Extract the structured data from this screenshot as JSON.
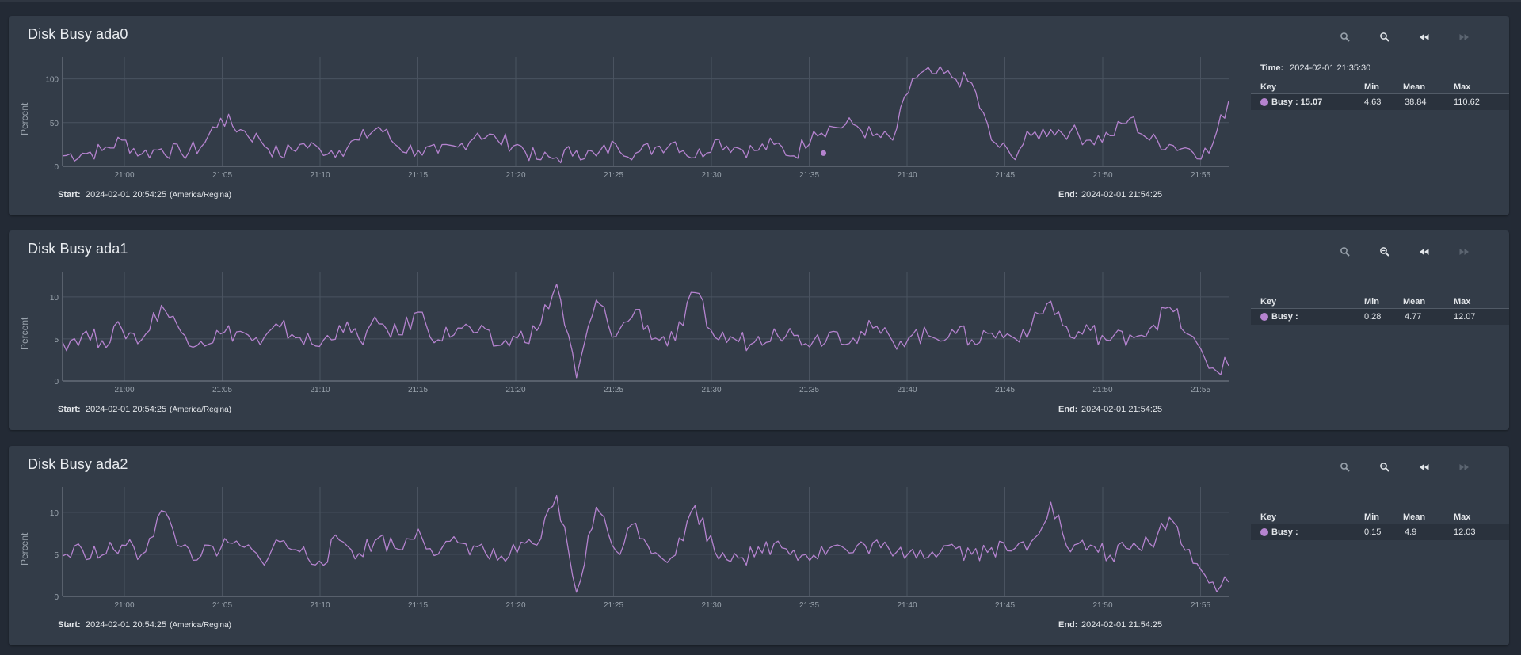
{
  "panels": [
    {
      "title": "Disk Busy ada0",
      "ylabel": "Percent",
      "yticks": [
        "0",
        "50",
        "100"
      ],
      "ymax": 125,
      "xticks": [
        "21:00",
        "21:05",
        "21:10",
        "21:15",
        "21:20",
        "21:25",
        "21:30",
        "21:35",
        "21:40",
        "21:45",
        "21:50",
        "21:55"
      ],
      "start_label": "Start:",
      "start_value": "2024-02-01 20:54:25",
      "start_tz": "(America/Regina)",
      "end_label": "End:",
      "end_value": "2024-02-01 21:54:25",
      "legend": {
        "time_label": "Time:",
        "time_value": "2024-02-01 21:35:30",
        "headers": [
          "Key",
          "Min",
          "Mean",
          "Max"
        ],
        "row": {
          "key": "Busy : 15.07",
          "min": "4.63",
          "mean": "38.84",
          "max": "110.62"
        }
      }
    },
    {
      "title": "Disk Busy ada1",
      "ylabel": "Percent",
      "yticks": [
        "0",
        "5",
        "10"
      ],
      "ymax": 13,
      "xticks": [
        "21:00",
        "21:05",
        "21:10",
        "21:15",
        "21:20",
        "21:25",
        "21:30",
        "21:35",
        "21:40",
        "21:45",
        "21:50",
        "21:55"
      ],
      "start_label": "Start:",
      "start_value": "2024-02-01 20:54:25",
      "start_tz": "(America/Regina)",
      "end_label": "End:",
      "end_value": "2024-02-01 21:54:25",
      "legend": {
        "time_label": "",
        "time_value": "",
        "headers": [
          "Key",
          "Min",
          "Mean",
          "Max"
        ],
        "row": {
          "key": "Busy :",
          "min": "0.28",
          "mean": "4.77",
          "max": "12.07"
        }
      }
    },
    {
      "title": "Disk Busy ada2",
      "ylabel": "Percent",
      "yticks": [
        "0",
        "5",
        "10"
      ],
      "ymax": 13,
      "xticks": [
        "21:00",
        "21:05",
        "21:10",
        "21:15",
        "21:20",
        "21:25",
        "21:30",
        "21:35",
        "21:40",
        "21:45",
        "21:50",
        "21:55"
      ],
      "start_label": "Start:",
      "start_value": "2024-02-01 20:54:25",
      "start_tz": "(America/Regina)",
      "end_label": "End:",
      "end_value": "2024-02-01 21:54:25",
      "legend": {
        "time_label": "",
        "time_value": "",
        "headers": [
          "Key",
          "Min",
          "Mean",
          "Max"
        ],
        "row": {
          "key": "Busy :",
          "min": "0.15",
          "mean": "4.9",
          "max": "12.03"
        }
      }
    }
  ],
  "toolbar_icons": [
    "zoom-in-icon",
    "zoom-out-icon",
    "rewind-icon",
    "fast-forward-icon"
  ],
  "colors": {
    "series": "#b583cf",
    "panel": "#333c48",
    "background": "#232a35"
  },
  "chart_data": [
    {
      "type": "line",
      "title": "Disk Busy ada0",
      "ylabel": "Percent",
      "ylim": [
        0,
        125
      ],
      "x_start": "20:57",
      "x_end": "21:56",
      "x_step_minutes": 1,
      "series": [
        {
          "name": "Busy",
          "values": [
            12,
            15,
            18,
            30,
            14,
            20,
            15,
            22,
            55,
            42,
            30,
            12,
            25,
            20,
            18,
            30,
            45,
            22,
            18,
            15,
            22,
            38,
            30,
            25,
            8,
            10,
            18,
            12,
            25,
            15,
            22,
            28,
            10,
            30,
            22,
            18,
            25,
            12,
            40,
            45,
            48,
            35,
            30,
            100,
            106,
            102,
            95,
            30,
            12,
            35,
            42,
            40,
            30,
            35,
            55,
            30,
            25,
            20,
            15,
            75
          ]
        }
      ],
      "marker": {
        "x": "21:35:30",
        "y": 15.07
      }
    },
    {
      "type": "line",
      "title": "Disk Busy ada1",
      "ylabel": "Percent",
      "ylim": [
        0,
        13
      ],
      "x_start": "20:57",
      "x_end": "21:56",
      "x_step_minutes": 1,
      "series": [
        {
          "name": "Busy",
          "values": [
            4.6,
            5.5,
            4.8,
            6.2,
            4.9,
            9.0,
            5.8,
            4.7,
            5.6,
            5.9,
            4.3,
            6.4,
            5.2,
            4.1,
            6.6,
            5.0,
            6.8,
            5.5,
            8.2,
            4.9,
            6.3,
            5.8,
            4.2,
            5.1,
            6.0,
            11.5,
            0.4,
            9.6,
            5.3,
            8.5,
            5.1,
            4.8,
            10.5,
            5.2,
            5.0,
            4.6,
            6.2,
            5.4,
            4.8,
            5.9,
            5.1,
            6.3,
            4.7,
            5.5,
            5.2,
            6.1,
            4.9,
            5.7,
            5.3,
            6.4,
            9.5,
            5.2,
            6.0,
            4.8,
            5.5,
            6.2,
            8.8,
            5.5,
            1.5,
            1.8
          ]
        }
      ]
    },
    {
      "type": "line",
      "title": "Disk Busy ada2",
      "ylabel": "Percent",
      "ylim": [
        0,
        13
      ],
      "x_start": "20:57",
      "x_end": "21:56",
      "x_step_minutes": 1,
      "series": [
        {
          "name": "Busy",
          "values": [
            4.8,
            5.6,
            4.9,
            6.1,
            5.0,
            10.2,
            5.9,
            4.8,
            5.7,
            6.0,
            4.4,
            6.5,
            5.3,
            4.2,
            6.7,
            5.1,
            7.0,
            5.6,
            8.0,
            5.0,
            6.4,
            5.9,
            4.3,
            5.2,
            6.1,
            12.0,
            0.5,
            10.6,
            5.4,
            8.7,
            5.2,
            4.9,
            10.8,
            5.3,
            5.1,
            4.7,
            6.3,
            5.5,
            4.9,
            6.0,
            5.2,
            6.4,
            4.8,
            5.6,
            5.3,
            6.2,
            5.0,
            5.8,
            5.4,
            6.5,
            11.2,
            5.3,
            6.1,
            4.9,
            5.6,
            6.3,
            9.4,
            5.6,
            1.6,
            1.7
          ]
        }
      ]
    }
  ]
}
